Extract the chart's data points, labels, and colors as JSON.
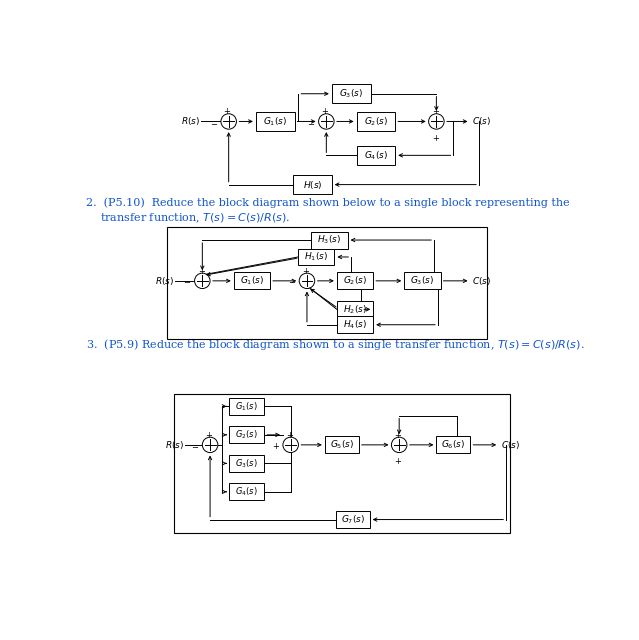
{
  "bg_color": "#ffffff",
  "lw": 0.7,
  "fs_label": 6.5,
  "fs_text": 8.0,
  "fs_sign": 6.0,
  "r_sum": 0.1,
  "blue": "#1155cc",
  "black": "#000000"
}
